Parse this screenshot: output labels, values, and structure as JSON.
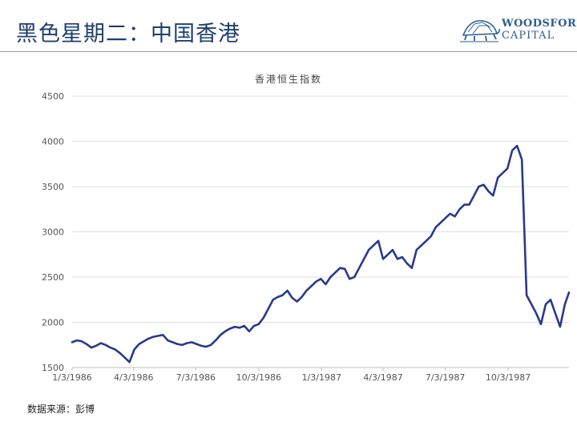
{
  "header": {
    "title": "黑色星期二：中国香港",
    "logo_line1": "WOODSFORD",
    "logo_line2": "CAPITAL"
  },
  "source": "数据来源：彭博",
  "chart_data": {
    "type": "line",
    "title": "香港恒生指数",
    "xlabel": "",
    "ylabel": "",
    "ylim": [
      1500,
      4500
    ],
    "yticks": [
      1500,
      2000,
      2500,
      3000,
      3500,
      4000,
      4500
    ],
    "xticks": [
      "1/3/1986",
      "4/3/1986",
      "7/3/1986",
      "10/3/1986",
      "1/3/1987",
      "4/3/1987",
      "7/3/1987",
      "10/3/1987"
    ],
    "grid": true,
    "line_color": "#283a8c",
    "series": [
      {
        "x": [
          "1986-01-03",
          "1986-01-10",
          "1986-01-17",
          "1986-01-24",
          "1986-01-31",
          "1986-02-07",
          "1986-02-14",
          "1986-02-21",
          "1986-02-28",
          "1986-03-07",
          "1986-03-14",
          "1986-03-21",
          "1986-03-28",
          "1986-04-04",
          "1986-04-11",
          "1986-04-18",
          "1986-04-25",
          "1986-05-02",
          "1986-05-09",
          "1986-05-16",
          "1986-05-23",
          "1986-05-30",
          "1986-06-06",
          "1986-06-13",
          "1986-06-20",
          "1986-06-27",
          "1986-07-04",
          "1986-07-11",
          "1986-07-18",
          "1986-07-25",
          "1986-08-01",
          "1986-08-08",
          "1986-08-15",
          "1986-08-22",
          "1986-08-29",
          "1986-09-05",
          "1986-09-12",
          "1986-09-19",
          "1986-09-26",
          "1986-10-03",
          "1986-10-10",
          "1986-10-17",
          "1986-10-24",
          "1986-10-31",
          "1986-11-07",
          "1986-11-14",
          "1986-11-21",
          "1986-11-28",
          "1986-12-05",
          "1986-12-12",
          "1986-12-19",
          "1986-12-26",
          "1987-01-02",
          "1987-01-09",
          "1987-01-16",
          "1987-01-23",
          "1987-01-30",
          "1987-02-06",
          "1987-02-13",
          "1987-02-20",
          "1987-02-27",
          "1987-03-06",
          "1987-03-13",
          "1987-03-20",
          "1987-03-27",
          "1987-04-03",
          "1987-04-10",
          "1987-04-17",
          "1987-04-24",
          "1987-05-01",
          "1987-05-08",
          "1987-05-15",
          "1987-05-22",
          "1987-05-29",
          "1987-06-05",
          "1987-06-12",
          "1987-06-19",
          "1987-06-26",
          "1987-07-03",
          "1987-07-10",
          "1987-07-17",
          "1987-07-24",
          "1987-07-31",
          "1987-08-07",
          "1987-08-14",
          "1987-08-21",
          "1987-08-28",
          "1987-09-04",
          "1987-09-11",
          "1987-09-18",
          "1987-09-25",
          "1987-10-02",
          "1987-10-09",
          "1987-10-16",
          "1987-10-23",
          "1987-10-30",
          "1987-11-06",
          "1987-11-13",
          "1987-11-20",
          "1987-11-27",
          "1987-12-04",
          "1987-12-11",
          "1987-12-18",
          "1987-12-25",
          "1987-12-31"
        ],
        "values": [
          1780,
          1800,
          1790,
          1760,
          1720,
          1740,
          1770,
          1750,
          1720,
          1700,
          1660,
          1610,
          1560,
          1700,
          1760,
          1790,
          1820,
          1840,
          1850,
          1860,
          1800,
          1780,
          1760,
          1750,
          1770,
          1780,
          1760,
          1740,
          1730,
          1750,
          1800,
          1860,
          1900,
          1930,
          1950,
          1940,
          1960,
          1900,
          1960,
          1980,
          2050,
          2150,
          2250,
          2280,
          2300,
          2350,
          2270,
          2230,
          2280,
          2350,
          2400,
          2450,
          2480,
          2420,
          2500,
          2550,
          2600,
          2590,
          2480,
          2500,
          2600,
          2700,
          2800,
          2850,
          2900,
          2700,
          2750,
          2800,
          2700,
          2720,
          2650,
          2600,
          2800,
          2850,
          2900,
          2950,
          3050,
          3100,
          3150,
          3200,
          3170,
          3250,
          3300,
          3300,
          3400,
          3500,
          3520,
          3450,
          3400,
          3600,
          3650,
          3700,
          3900,
          3950,
          3800,
          2300,
          2200,
          2100,
          1980,
          2200,
          2250,
          2100,
          1950,
          2200,
          2330
        ]
      }
    ]
  }
}
